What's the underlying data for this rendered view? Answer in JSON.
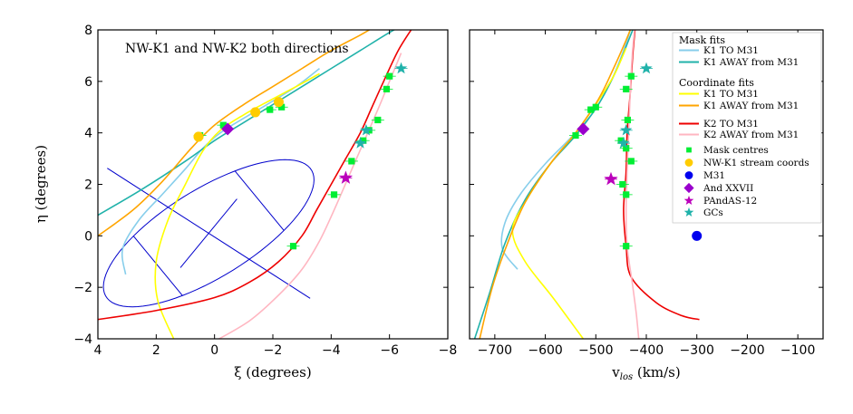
{
  "chart_data": [
    {
      "type": "line",
      "panel": "left",
      "annotation": "NW-K1 and NW-K2 both directions",
      "xlabel": "ξ (degrees)",
      "ylabel": "η (degrees)",
      "xlim": [
        4,
        -8
      ],
      "ylim": [
        -4,
        8
      ],
      "xticks": [
        4,
        2,
        0,
        -2,
        -4,
        -6,
        -8
      ],
      "xtick_labels": [
        "4",
        "2",
        "0",
        "−2",
        "−4",
        "−6",
        "−8"
      ],
      "yticks": [
        -4,
        -2,
        0,
        2,
        4,
        6,
        8
      ],
      "ytick_labels": [
        "−4",
        "−2",
        "0",
        "2",
        "4",
        "6",
        "8"
      ],
      "ellipse": {
        "center": [
          0.2,
          0.1
        ],
        "semi_major_deg": 4.3,
        "semi_minor_deg": 1.65,
        "angle_deg": 144,
        "color": "#0000cc"
      },
      "series": [
        {
          "name": "K1 TO M31 (mask)",
          "color": "#87ceeb",
          "points": [
            [
              3.05,
              -1.5
            ],
            [
              3.15,
              -0.5
            ],
            [
              2.6,
              0.6
            ],
            [
              1.8,
              1.6
            ],
            [
              1.0,
              2.6
            ],
            [
              0.4,
              3.4
            ],
            [
              -0.2,
              4.0
            ],
            [
              -0.9,
              4.5
            ],
            [
              -1.8,
              5.1
            ],
            [
              -2.8,
              5.8
            ],
            [
              -3.6,
              6.5
            ]
          ]
        },
        {
          "name": "K1 AWAY from M31 (mask)",
          "color": "#20b2aa",
          "points": [
            [
              4,
              0.8
            ],
            [
              2.5,
              1.8
            ],
            [
              1.0,
              2.9
            ],
            [
              0,
              3.7
            ],
            [
              -1,
              4.4
            ],
            [
              -2,
              5.1
            ],
            [
              -3,
              5.8
            ],
            [
              -4,
              6.5
            ],
            [
              -5,
              7.2
            ],
            [
              -6,
              7.9
            ],
            [
              -6.5,
              8.2
            ]
          ]
        },
        {
          "name": "K1 TO M31 (coord)",
          "color": "#ffff00",
          "points": [
            [
              1.4,
              -4
            ],
            [
              1.95,
              -2.5
            ],
            [
              2.0,
              -1.0
            ],
            [
              1.6,
              0.6
            ],
            [
              1.0,
              2.0
            ],
            [
              0.4,
              3.3
            ],
            [
              -0.2,
              4.1
            ],
            [
              -1,
              4.7
            ],
            [
              -1.8,
              5.2
            ],
            [
              -2.8,
              5.8
            ],
            [
              -3.6,
              6.3
            ]
          ]
        },
        {
          "name": "K1 AWAY from M31 (coord)",
          "color": "#ffa500",
          "points": [
            [
              4,
              0
            ],
            [
              2.8,
              1.0
            ],
            [
              1.8,
              2.1
            ],
            [
              0.8,
              3.4
            ],
            [
              0,
              4.3
            ],
            [
              -1,
              5.1
            ],
            [
              -2,
              5.8
            ],
            [
              -3,
              6.5
            ],
            [
              -4,
              7.2
            ],
            [
              -5,
              7.8
            ],
            [
              -5.6,
              8.2
            ]
          ]
        },
        {
          "name": "K2 TO M31 (coord)",
          "color": "#ee0000",
          "points": [
            [
              4,
              -3.25
            ],
            [
              2,
              -2.9
            ],
            [
              0,
              -2.4
            ],
            [
              -1.2,
              -1.8
            ],
            [
              -2.2,
              -1.0
            ],
            [
              -3,
              0
            ],
            [
              -3.5,
              1.0
            ],
            [
              -4,
              2.0
            ],
            [
              -4.5,
              3.0
            ],
            [
              -5,
              4.0
            ],
            [
              -5.4,
              5.0
            ],
            [
              -5.8,
              6.0
            ],
            [
              -6.3,
              7.2
            ],
            [
              -6.8,
              8.1
            ]
          ]
        },
        {
          "name": "K2 AWAY from M31 (coord)",
          "color": "#ffb6c1",
          "points": [
            [
              0,
              -4.1
            ],
            [
              -1.2,
              -3.3
            ],
            [
              -2.2,
              -2.3
            ],
            [
              -3.0,
              -1.3
            ],
            [
              -3.6,
              -0.2
            ],
            [
              -4.1,
              1.0
            ],
            [
              -4.6,
              2.3
            ],
            [
              -5.1,
              3.6
            ],
            [
              -5.6,
              4.9
            ],
            [
              -6.0,
              6.0
            ],
            [
              -6.4,
              7.1
            ]
          ]
        }
      ],
      "mask_centres": {
        "color": "#00ee33",
        "points": [
          [
            0.5,
            3.9
          ],
          [
            -0.3,
            4.3
          ],
          [
            -1.9,
            4.9
          ],
          [
            -2.3,
            5.0
          ],
          [
            -2.7,
            -0.4
          ],
          [
            -4.1,
            1.6
          ],
          [
            -4.7,
            2.9
          ],
          [
            -5.1,
            3.7
          ],
          [
            -5.3,
            4.1
          ],
          [
            -5.6,
            4.5
          ],
          [
            -5.9,
            5.7
          ],
          [
            -6.0,
            6.2
          ]
        ]
      },
      "stream_coords": {
        "color": "#ffcc00",
        "points": [
          [
            0.55,
            3.85
          ],
          [
            -1.4,
            4.8
          ],
          [
            -2.2,
            5.2
          ]
        ]
      },
      "and_xxvii": {
        "color": "#9900cc",
        "points": [
          [
            -0.45,
            4.15
          ]
        ]
      },
      "pandas_12": {
        "color": "#bb00bb",
        "points": [
          [
            -4.5,
            2.25
          ]
        ]
      },
      "gcs": {
        "color": "#20b2aa",
        "points": [
          [
            -5.0,
            3.6
          ],
          [
            -5.2,
            4.1
          ],
          [
            -6.4,
            6.5
          ]
        ]
      }
    },
    {
      "type": "line",
      "panel": "right",
      "xlabel_main": "v",
      "xlabel_sub": "los",
      "xlabel_unit": " (km/s)",
      "xlim": [
        -750,
        -50
      ],
      "ylim": [
        -4,
        8
      ],
      "xticks": [
        -700,
        -600,
        -500,
        -400,
        -300,
        -200,
        -100
      ],
      "xtick_labels": [
        "−700",
        "−600",
        "−500",
        "−400",
        "−300",
        "−200",
        "−100"
      ],
      "yticks": [
        -4,
        -2,
        0,
        2,
        4,
        6,
        8
      ],
      "series": [
        {
          "name": "K1 TO M31 (mask)",
          "color": "#87ceeb",
          "points": [
            [
              -655,
              -1.3
            ],
            [
              -685,
              -0.5
            ],
            [
              -680,
              0.5
            ],
            [
              -650,
              1.6
            ],
            [
              -600,
              2.8
            ],
            [
              -550,
              3.8
            ],
            [
              -505,
              4.8
            ],
            [
              -470,
              6.0
            ],
            [
              -445,
              7.2
            ],
            [
              -430,
              8.1
            ]
          ]
        },
        {
          "name": "K1 AWAY from M31 (mask)",
          "color": "#20b2aa",
          "points": [
            [
              -740,
              -4
            ],
            [
              -710,
              -2.2
            ],
            [
              -680,
              -0.3
            ],
            [
              -640,
              1.4
            ],
            [
              -590,
              2.8
            ],
            [
              -540,
              3.9
            ],
            [
              -495,
              5.1
            ],
            [
              -460,
              6.4
            ],
            [
              -435,
              7.6
            ],
            [
              -425,
              8.1
            ]
          ]
        },
        {
          "name": "K1 TO M31 (coord)",
          "color": "#ffff00",
          "points": [
            [
              -525,
              -4
            ],
            [
              -585,
              -2.4
            ],
            [
              -640,
              -1.0
            ],
            [
              -665,
              0.2
            ],
            [
              -640,
              1.3
            ],
            [
              -590,
              2.8
            ],
            [
              -540,
              4.0
            ],
            [
              -500,
              5.1
            ],
            [
              -465,
              6.2
            ],
            [
              -440,
              7.3
            ]
          ]
        },
        {
          "name": "K1 AWAY from M31 (coord)",
          "color": "#ffa500",
          "points": [
            [
              -730,
              -4
            ],
            [
              -705,
              -2.0
            ],
            [
              -675,
              -0.3
            ],
            [
              -640,
              1.3
            ],
            [
              -590,
              2.8
            ],
            [
              -540,
              4.0
            ],
            [
              -495,
              5.3
            ],
            [
              -465,
              6.5
            ],
            [
              -440,
              7.6
            ],
            [
              -430,
              8.1
            ]
          ]
        },
        {
          "name": "K2 TO M31 (coord)",
          "color": "#ee0000",
          "points": [
            [
              -295,
              -3.25
            ],
            [
              -330,
              -3.1
            ],
            [
              -380,
              -2.6
            ],
            [
              -430,
              -1.6
            ],
            [
              -440,
              -0.4
            ],
            [
              -445,
              1.0
            ],
            [
              -440,
              2.5
            ],
            [
              -438,
              4.0
            ],
            [
              -432,
              5.5
            ],
            [
              -427,
              7.0
            ],
            [
              -422,
              8.1
            ]
          ]
        },
        {
          "name": "K2 AWAY from M31 (coord)",
          "color": "#ffb6c1",
          "points": [
            [
              -415,
              -4
            ],
            [
              -420,
              -3.0
            ],
            [
              -428,
              -1.8
            ],
            [
              -438,
              -0.4
            ],
            [
              -440,
              1.0
            ],
            [
              -438,
              2.5
            ],
            [
              -435,
              4.0
            ],
            [
              -432,
              5.5
            ],
            [
              -428,
              7.0
            ],
            [
              -423,
              8.1
            ]
          ]
        }
      ],
      "mask_centres": {
        "color": "#00ee33",
        "points": [
          [
            -540,
            3.9
          ],
          [
            -510,
            4.9
          ],
          [
            -500,
            5.0
          ],
          [
            -440,
            5.7
          ],
          [
            -430,
            6.2
          ],
          [
            -437,
            4.5
          ],
          [
            -450,
            3.7
          ],
          [
            -440,
            3.4
          ],
          [
            -430,
            2.9
          ],
          [
            -447,
            2.0
          ],
          [
            -440,
            1.6
          ],
          [
            -440,
            -0.4
          ]
        ]
      },
      "and_xxvii": {
        "color": "#9900cc",
        "points": [
          [
            -525,
            4.15
          ]
        ]
      },
      "m31": {
        "color": "#0000ee",
        "points": [
          [
            -300,
            0
          ]
        ]
      },
      "pandas_12": {
        "color": "#bb00bb",
        "points": [
          [
            -470,
            2.2
          ]
        ]
      },
      "gcs": {
        "color": "#20b2aa",
        "points": [
          [
            -440,
            4.1
          ],
          [
            -445,
            3.6
          ],
          [
            -400,
            6.5
          ]
        ]
      }
    }
  ],
  "legend": {
    "mask_header": "Mask fits",
    "coord_header": "Coordinate fits",
    "entries": [
      {
        "label": "K1 TO M31",
        "kind": "line",
        "color": "#87ceeb"
      },
      {
        "label": "K1 AWAY from M31",
        "kind": "line",
        "color": "#20b2aa"
      },
      {
        "label": "K1 TO M31",
        "kind": "line",
        "color": "#ffff00"
      },
      {
        "label": "K1 AWAY from M31",
        "kind": "line",
        "color": "#ffa500"
      },
      {
        "label": "K2 TO M31",
        "kind": "line",
        "color": "#ee0000"
      },
      {
        "label": "K2 AWAY from M31",
        "kind": "line",
        "color": "#ffb6c1"
      },
      {
        "label": "Mask centres",
        "kind": "square",
        "color": "#00ee33"
      },
      {
        "label": "NW-K1 stream coords",
        "kind": "circle",
        "color": "#ffcc00"
      },
      {
        "label": "M31",
        "kind": "circle",
        "color": "#0000ee"
      },
      {
        "label": "And XXVII",
        "kind": "diamond",
        "color": "#9900cc"
      },
      {
        "label": "PAndAS-12",
        "kind": "star",
        "color": "#bb00bb"
      },
      {
        "label": "GCs",
        "kind": "star",
        "color": "#20b2aa"
      }
    ]
  }
}
